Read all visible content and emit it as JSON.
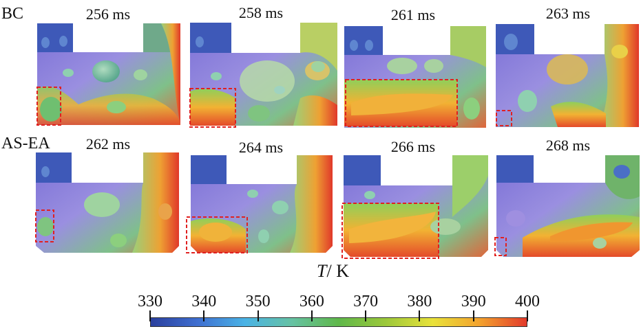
{
  "rows": [
    {
      "label": "BC",
      "times": [
        "256 ms",
        "258 ms",
        "261 ms",
        "263 ms"
      ]
    },
    {
      "label": "AS-EA",
      "times": [
        "262 ms",
        "264 ms",
        "266 ms",
        "268 ms"
      ]
    }
  ],
  "colorbar": {
    "title_var": "T",
    "title_unit": "/ K",
    "ticks": [
      "330",
      "340",
      "350",
      "360",
      "370",
      "380",
      "390",
      "400"
    ],
    "min": 330,
    "max": 400,
    "colors": [
      "#2a3f9d",
      "#3f6fd0",
      "#4ab3e6",
      "#66c2a4",
      "#5fb84a",
      "#9cc83a",
      "#e9e23a",
      "#f3a22e",
      "#e23a2b"
    ]
  },
  "highlight_color": "#e02020"
}
